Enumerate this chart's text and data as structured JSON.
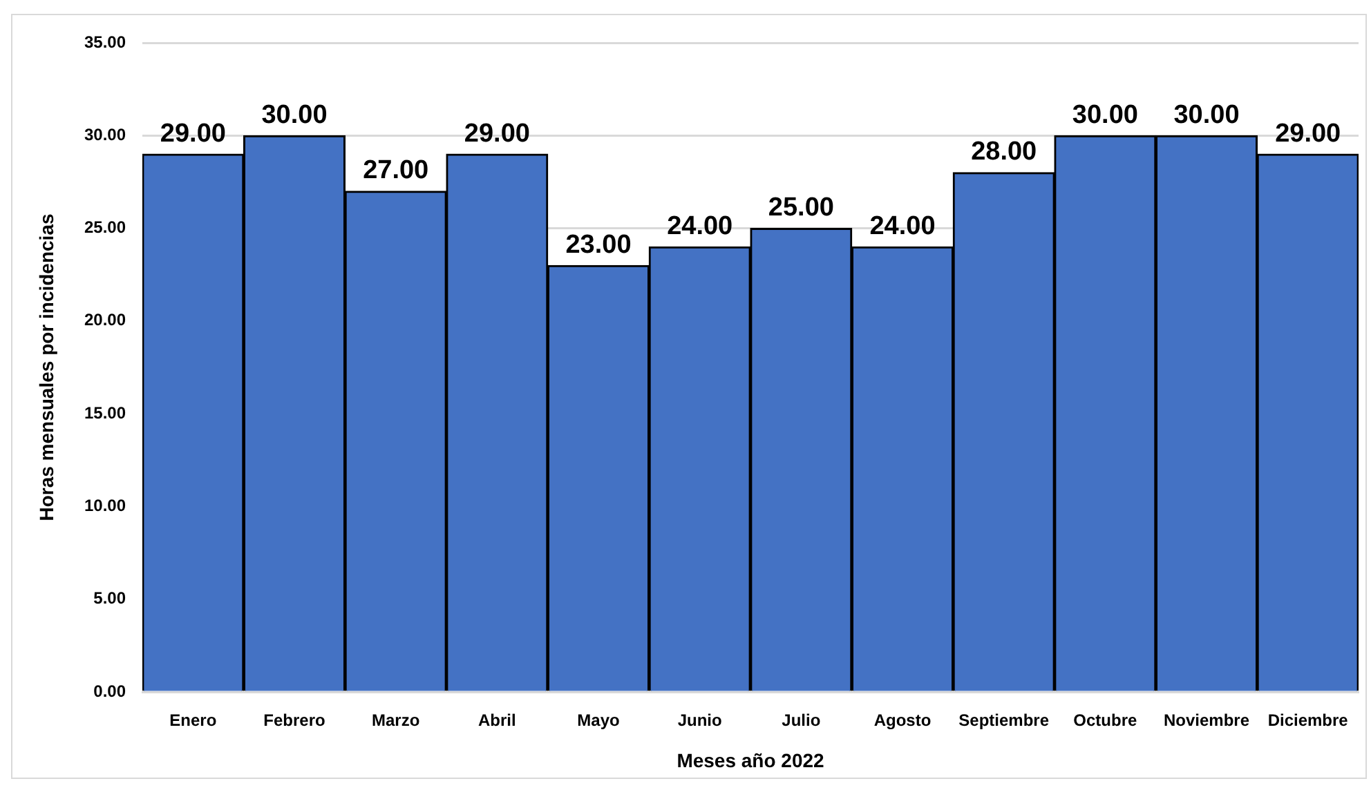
{
  "chart_data": {
    "type": "bar",
    "xlabel": "Meses año 2022",
    "ylabel": "Horas mensuales por incidencias",
    "categories": [
      "Enero",
      "Febrero",
      "Marzo",
      "Abril",
      "Mayo",
      "Junio",
      "Julio",
      "Agosto",
      "Septiembre",
      "Octubre",
      "Noviembre",
      "Diciembre"
    ],
    "values": [
      29,
      30,
      27,
      29,
      23,
      24,
      25,
      24,
      28,
      30,
      30,
      29
    ],
    "value_labels": [
      "29.00",
      "30.00",
      "27.00",
      "29.00",
      "23.00",
      "24.00",
      "25.00",
      "24.00",
      "28.00",
      "30.00",
      "30.00",
      "29.00"
    ],
    "color": "#4472c4",
    "ylim": [
      0,
      35
    ],
    "yticks": [
      {
        "value": 0,
        "label": "0.00"
      },
      {
        "value": 5,
        "label": "5.00"
      },
      {
        "value": 10,
        "label": "10.00"
      },
      {
        "value": 15,
        "label": "15.00"
      },
      {
        "value": 20,
        "label": "20.00"
      },
      {
        "value": 25,
        "label": "25.00"
      },
      {
        "value": 30,
        "label": "30.00"
      },
      {
        "value": 35,
        "label": "35.00"
      }
    ],
    "grid": "y"
  }
}
